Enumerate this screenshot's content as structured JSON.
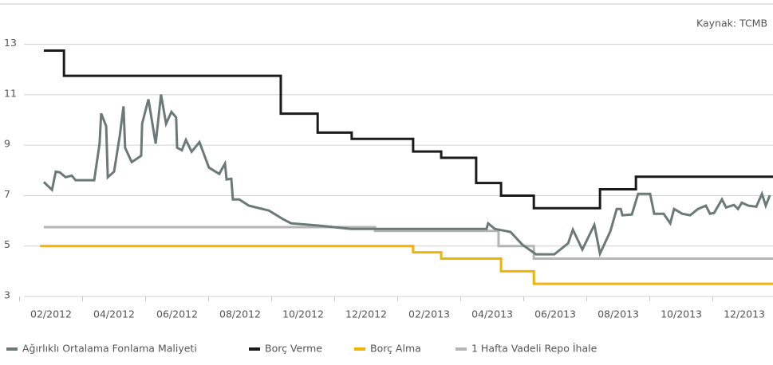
{
  "chart_data": {
    "type": "line",
    "source": "Kaynak: TCMB",
    "xlim": [
      0.38,
      24.91
    ],
    "xticks": [
      {
        "value": 2,
        "label": "02/2012"
      },
      {
        "value": 4,
        "label": "04/2012"
      },
      {
        "value": 6,
        "label": "06/2012"
      },
      {
        "value": 8,
        "label": "08/2012"
      },
      {
        "value": 10,
        "label": "10/2012"
      },
      {
        "value": 12,
        "label": "12/2012"
      },
      {
        "value": 14,
        "label": "02/2013"
      },
      {
        "value": 16,
        "label": "04/2013"
      },
      {
        "value": 18,
        "label": "06/2013"
      },
      {
        "value": 20,
        "label": "08/2013"
      },
      {
        "value": 22,
        "label": "10/2013"
      },
      {
        "value": 24,
        "label": "12/2013"
      }
    ],
    "ylim": [
      3,
      14.6
    ],
    "yticks": [
      3,
      5,
      7,
      9,
      11,
      13
    ],
    "grid": true,
    "legend": "bottom",
    "series": [
      {
        "name": "Ağırlıklı Ortalama Fonlama Maliyeti",
        "color": "#6b7a77",
        "x": [
          1.77,
          2.03,
          2.15,
          2.28,
          2.46,
          2.66,
          2.78,
          3.37,
          3.54,
          3.59,
          3.75,
          3.8,
          4.0,
          4.18,
          4.3,
          4.35,
          4.56,
          4.86,
          4.89,
          5.09,
          5.32,
          5.49,
          5.65,
          5.82,
          5.97,
          6.0,
          6.15,
          6.28,
          6.46,
          6.71,
          7.01,
          7.34,
          7.42,
          7.52,
          7.57,
          7.72,
          7.77,
          7.97,
          8.28,
          8.91,
          9.37,
          9.62,
          10.51,
          11.52,
          13.04,
          14.3,
          15.82,
          15.87,
          16.08,
          16.58,
          16.96,
          17.39,
          17.97,
          18.41,
          18.56,
          18.86,
          19.24,
          19.42,
          19.75,
          19.95,
          20.08,
          20.13,
          20.43,
          20.63,
          21.01,
          21.14,
          21.44,
          21.65,
          21.77,
          22.03,
          22.28,
          22.53,
          22.78,
          22.91,
          23.04,
          23.29,
          23.42,
          23.67,
          23.8,
          23.92,
          24.13,
          24.38,
          24.56,
          24.68,
          24.81
        ],
        "values": [
          7.54,
          7.23,
          7.95,
          7.92,
          7.73,
          7.79,
          7.61,
          7.61,
          9.06,
          10.26,
          9.75,
          7.73,
          7.95,
          9.37,
          10.54,
          8.9,
          8.33,
          8.58,
          9.85,
          10.82,
          9.06,
          11.01,
          9.85,
          10.32,
          10.1,
          8.9,
          8.8,
          9.21,
          8.74,
          9.12,
          8.11,
          7.86,
          8.05,
          8.27,
          7.64,
          7.67,
          6.85,
          6.85,
          6.6,
          6.41,
          6.06,
          5.9,
          5.81,
          5.68,
          5.68,
          5.68,
          5.68,
          5.9,
          5.68,
          5.56,
          5.05,
          4.67,
          4.67,
          5.11,
          5.65,
          4.86,
          5.84,
          4.7,
          5.59,
          6.47,
          6.47,
          6.22,
          6.25,
          7.07,
          7.07,
          6.28,
          6.28,
          5.9,
          6.47,
          6.28,
          6.22,
          6.47,
          6.6,
          6.28,
          6.31,
          6.85,
          6.53,
          6.63,
          6.47,
          6.72,
          6.6,
          6.56,
          7.07,
          6.6,
          7.01
        ]
      },
      {
        "name": "Borç Verme",
        "color": "#1a1a1a",
        "x": [
          1.77,
          2.41,
          2.41,
          9.29,
          9.29,
          10.46,
          10.46,
          11.54,
          11.54,
          13.49,
          13.49,
          14.38,
          14.38,
          15.49,
          15.49,
          16.28,
          16.28,
          17.32,
          17.32,
          19.42,
          19.42,
          20.56,
          20.56,
          24.91
        ],
        "values": [
          12.75,
          12.75,
          11.75,
          11.75,
          10.25,
          10.25,
          9.5,
          9.5,
          9.25,
          9.25,
          8.75,
          8.75,
          8.5,
          8.5,
          7.5,
          7.5,
          7,
          7,
          6.5,
          6.5,
          7.25,
          7.25,
          7.75,
          7.75
        ]
      },
      {
        "name": "Borç Alma",
        "color": "#f2b300",
        "x": [
          1.65,
          13.49,
          13.49,
          14.38,
          14.38,
          16.28,
          16.28,
          17.32,
          17.32,
          24.91
        ],
        "values": [
          5,
          5,
          4.75,
          4.75,
          4.5,
          4.5,
          4,
          4,
          3.5,
          3.5
        ]
      },
      {
        "name": "1 Hafta Vadeli Repo İhale",
        "color": "#b5b5b5",
        "x": [
          1.77,
          12.28,
          12.28,
          16.2,
          16.2,
          17.32,
          17.32,
          24.91
        ],
        "values": [
          5.75,
          5.75,
          5.6,
          5.6,
          5,
          5,
          4.5,
          4.5
        ]
      }
    ]
  }
}
